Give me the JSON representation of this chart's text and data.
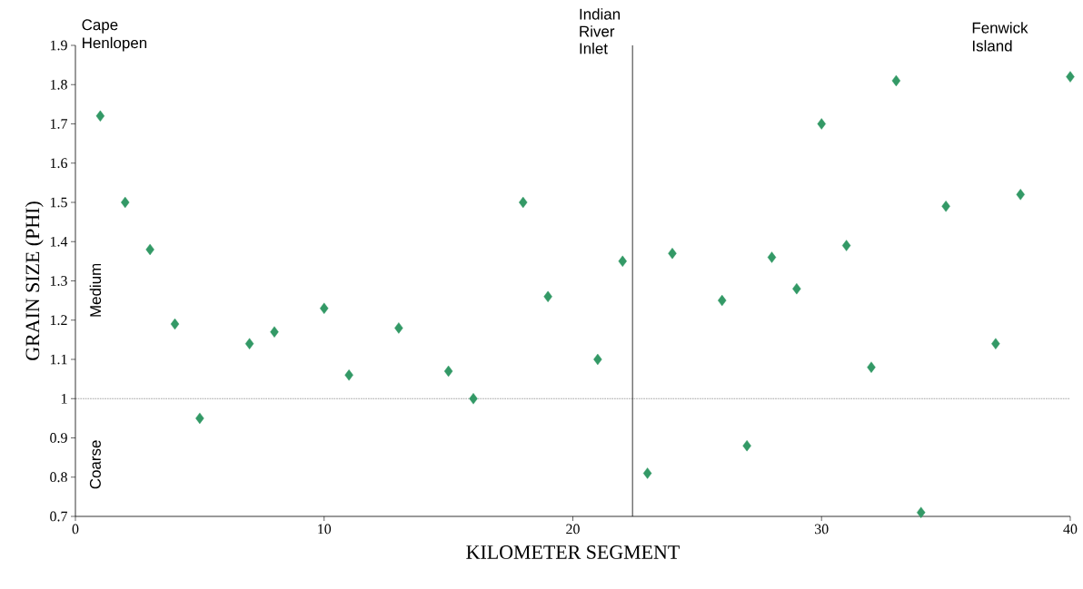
{
  "chart_data": {
    "type": "scatter",
    "xlabel": "KILOMETER SEGMENT",
    "ylabel": "GRAIN SIZE (PHI)",
    "x": [
      1,
      2,
      3,
      4,
      5,
      7,
      8,
      10,
      11,
      13,
      15,
      16,
      18,
      19,
      21,
      22,
      23,
      24,
      26,
      27,
      28,
      29,
      30,
      31,
      32,
      33,
      34,
      35,
      37,
      38,
      40
    ],
    "values": [
      1.72,
      1.5,
      1.38,
      1.19,
      0.95,
      1.14,
      1.17,
      1.23,
      1.06,
      1.18,
      1.07,
      1.0,
      1.5,
      1.26,
      1.1,
      1.35,
      0.81,
      1.37,
      1.25,
      0.88,
      1.36,
      1.28,
      1.7,
      1.39,
      1.08,
      1.81,
      0.71,
      1.49,
      1.14,
      1.52,
      1.82
    ],
    "color": "#339966",
    "marker": "diamond",
    "grid": false,
    "xlim": [
      0,
      40
    ],
    "xticks": [
      0,
      10,
      20,
      30,
      40
    ],
    "ylim": [
      0.7,
      1.9
    ],
    "yticks": [
      {
        "value": 0.7,
        "label": "0.7"
      },
      {
        "value": 0.8,
        "label": "0.8"
      },
      {
        "value": 0.9,
        "label": "0.9"
      },
      {
        "value": 1,
        "label": "1"
      },
      {
        "value": 1.1,
        "label": "1.1"
      },
      {
        "value": 1.2,
        "label": "1.2"
      },
      {
        "value": 1.3,
        "label": "1.3"
      },
      {
        "value": 1.4,
        "label": "1.4"
      },
      {
        "value": 1.5,
        "label": "1.5"
      },
      {
        "value": 1.6,
        "label": "1.6"
      },
      {
        "value": 1.7,
        "label": "1.7"
      },
      {
        "value": 1.8,
        "label": "1.8"
      },
      {
        "value": 1.9,
        "label": "1.9"
      }
    ],
    "ref_lines": [
      {
        "axis": "x",
        "value": 22.4,
        "label": "Indian River Inlet",
        "color": "#000000",
        "line_style": "solid"
      },
      {
        "axis": "y",
        "value": 1,
        "color": "#000000",
        "line_style": "dotted"
      }
    ],
    "annotations": [
      "Cape Henlopen",
      "Fenwick Island",
      "Medium",
      "Coarse"
    ]
  }
}
